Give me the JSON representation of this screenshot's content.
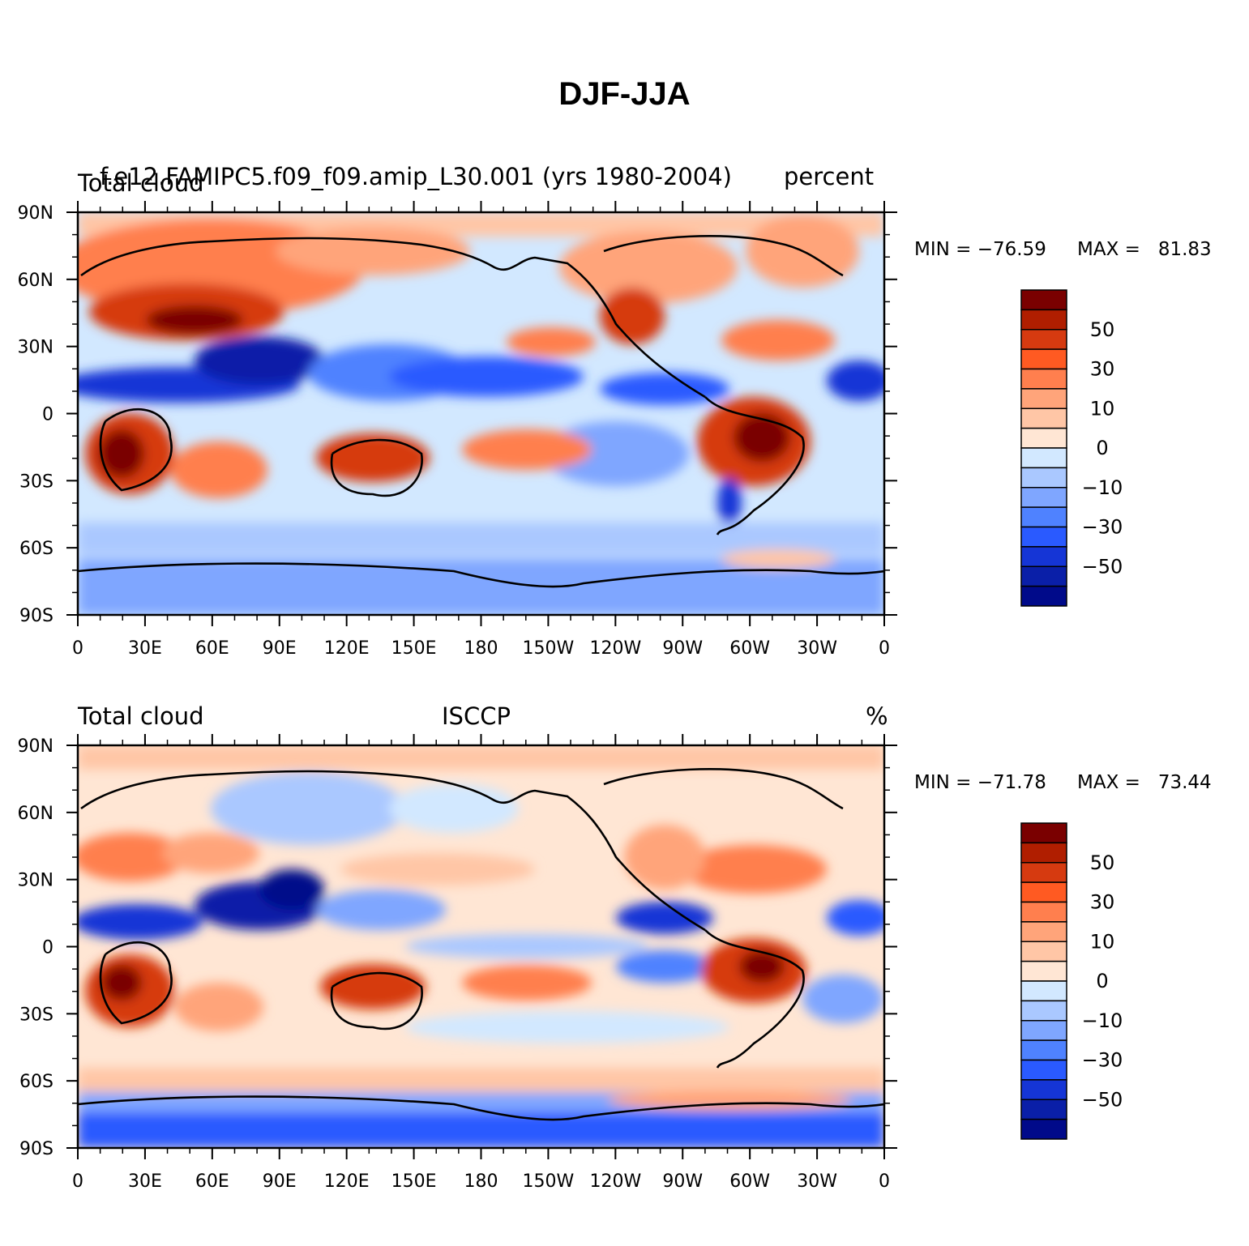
{
  "page": {
    "title": "DJF-JJA"
  },
  "panels": [
    {
      "left_title": "Total cloud",
      "center_title": "f.e12.FAMIPC5.f09_f09.amip_L30.001 (yrs 1980-2004)",
      "right_title": "percent",
      "min_text": "MIN = −76.59",
      "max_text": "MAX =   81.83",
      "lat_labels": [
        "90N",
        "60N",
        "30N",
        "0",
        "30S",
        "60S",
        "90S"
      ],
      "lon_labels": [
        "0",
        "30E",
        "60E",
        "90E",
        "120E",
        "150E",
        "180",
        "150W",
        "120W",
        "90W",
        "60W",
        "30W",
        "0"
      ],
      "colorbar_labels": [
        "50",
        "30",
        "10",
        "0",
        "−10",
        "−30",
        "−50"
      ]
    },
    {
      "left_title": "Total cloud",
      "center_title": "ISCCP",
      "right_title": "%",
      "min_text": "MIN = −71.78",
      "max_text": "MAX =   73.44",
      "lat_labels": [
        "90N",
        "60N",
        "30N",
        "0",
        "30S",
        "60S",
        "90S"
      ],
      "lon_labels": [
        "0",
        "30E",
        "60E",
        "90E",
        "120E",
        "150E",
        "180",
        "150W",
        "120W",
        "90W",
        "60W",
        "30W",
        "0"
      ],
      "colorbar_labels": [
        "50",
        "30",
        "10",
        "0",
        "−10",
        "−30",
        "−50"
      ]
    }
  ],
  "colorbar_colors": [
    "#7a0000",
    "#b01e00",
    "#d63a10",
    "#ff5a22",
    "#ff7f4e",
    "#ffa47a",
    "#ffc6a6",
    "#ffe6d4",
    "#d2e8ff",
    "#aac8ff",
    "#7fa6ff",
    "#4f82ff",
    "#2a5aff",
    "#1535d6",
    "#0a1fa8",
    "#000a8a"
  ]
}
